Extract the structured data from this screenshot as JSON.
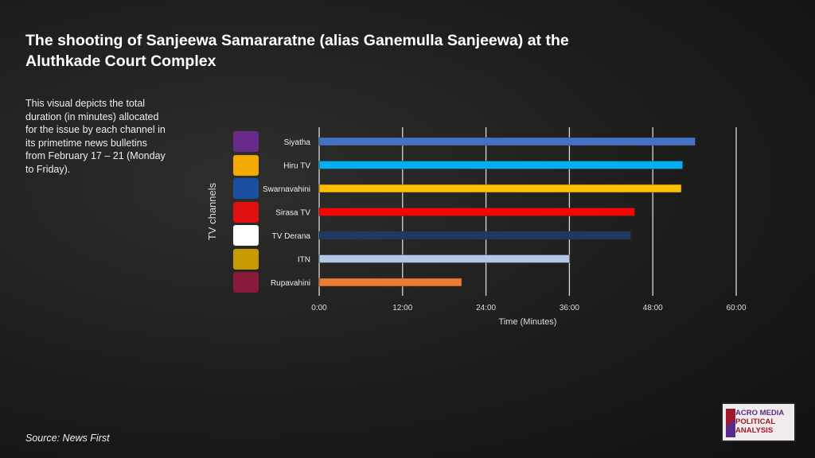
{
  "title": "The shooting of Sanjeewa Samararatne (alias Ganemulla Sanjeewa) at the Aluthkade Court Complex",
  "description": "This visual depicts the total duration  (in minutes) allocated for the issue by each channel in its primetime news bulletins from February 17 – 21 (Monday to Friday).",
  "source": "Source: News First",
  "logo": "ACRO MEDIA POLITICAL ANALYSIS",
  "chart_data": {
    "type": "bar",
    "orientation": "horizontal",
    "xlabel": "Time (Minutes)",
    "ylabel": "TV channels",
    "xlim": [
      0,
      60
    ],
    "xticks": [
      "0:00",
      "12:00",
      "24:00",
      "36:00",
      "48:00",
      "60:00"
    ],
    "grid": true,
    "categories": [
      "Siyatha",
      "Hiru TV",
      "Swarnavahini",
      "Sirasa TV",
      "TV Derana",
      "ITN",
      "Rupavahini"
    ],
    "values": [
      54.1,
      52.3,
      52.1,
      45.4,
      44.8,
      36.0,
      20.5
    ],
    "colors": [
      "#4472c4",
      "#00b0f0",
      "#ffc000",
      "#ff0000",
      "#203864",
      "#b4c7e7",
      "#ed7d31"
    ],
    "logo_colors": [
      "#6a2a8a",
      "#f2a900",
      "#1a4fa0",
      "#e01010",
      "#ffffff",
      "#c89a00",
      "#8a1a3a"
    ]
  }
}
